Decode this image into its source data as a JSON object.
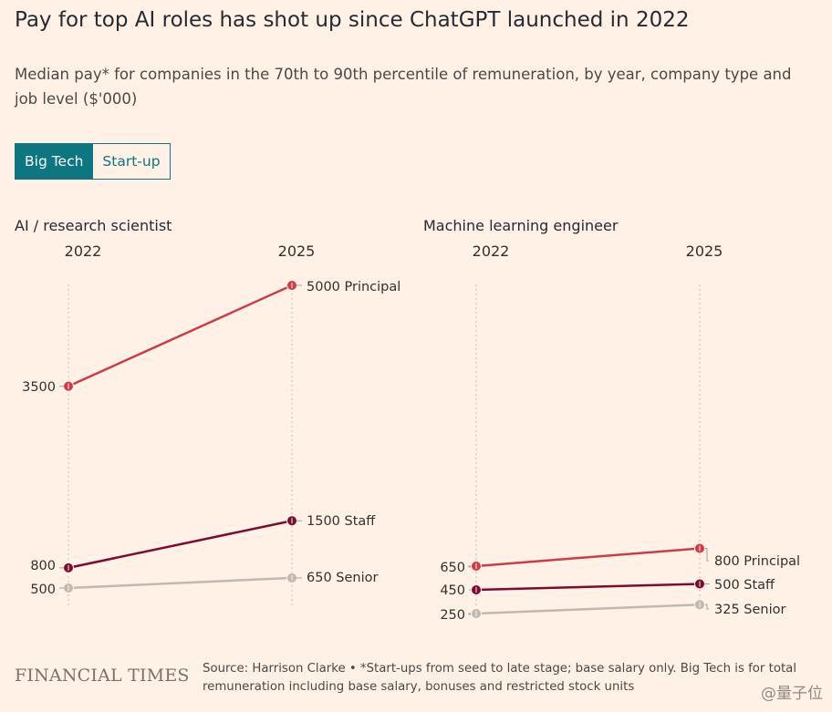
{
  "title": "Pay for top AI roles has shot up since ChatGPT launched in 2022",
  "subtitle": "Median pay* for companies in the 70th to 90th percentile of remuneration, by year, company type and job level ($'000)",
  "toggle": {
    "options": [
      "Big Tech",
      "Start-up"
    ],
    "selected": "Big Tech"
  },
  "colors": {
    "principal": "#cc3b48",
    "staff": "#7a0c31",
    "senior": "#c1b8b2",
    "accent": "#0d7680",
    "background": "#fff1e5"
  },
  "chart_data": [
    {
      "type": "line",
      "title": "AI / research scientist",
      "x": [
        "2022",
        "2025"
      ],
      "series": [
        {
          "name": "Principal",
          "values": [
            3500,
            5000
          ]
        },
        {
          "name": "Staff",
          "values": [
            800,
            1500
          ]
        },
        {
          "name": "Senior",
          "values": [
            500,
            650
          ]
        }
      ],
      "start_labels": [
        "3500",
        "800",
        "500"
      ],
      "end_labels": [
        "5000 Principal",
        "1500 Staff",
        "650 Senior"
      ]
    },
    {
      "type": "line",
      "title": "Machine learning engineer",
      "x": [
        "2022",
        "2025"
      ],
      "series": [
        {
          "name": "Principal",
          "values": [
            650,
            800
          ]
        },
        {
          "name": "Staff",
          "values": [
            450,
            500
          ]
        },
        {
          "name": "Senior",
          "values": [
            250,
            325
          ]
        }
      ],
      "start_labels": [
        "650",
        "450",
        "250"
      ],
      "end_labels": [
        "800 Principal",
        "500 Staff",
        "325 Senior"
      ]
    }
  ],
  "footer": {
    "brand": "FINANCIAL TIMES",
    "source": "Source: Harrison Clarke • *Start-ups from seed to late stage; base salary only. Big Tech is for total remuneration including base salary, bonuses and restricted stock units"
  },
  "watermark": "@量子位"
}
